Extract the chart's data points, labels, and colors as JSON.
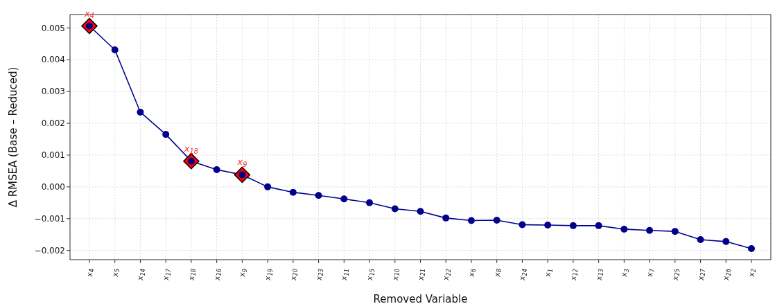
{
  "chart_data": {
    "type": "line",
    "xlabel": "Removed Variable",
    "ylabel": "Δ RMSEA (Base – Reduced)",
    "categories": [
      "x$_{4}$",
      "x$_{5}$",
      "x$_{14}$",
      "x$_{17}$",
      "x$_{18}$",
      "x$_{16}$",
      "x$_{9}$",
      "x$_{19}$",
      "x$_{20}$",
      "x$_{23}$",
      "x$_{11}$",
      "x$_{15}$",
      "x$_{10}$",
      "x$_{21}$",
      "x$_{22}$",
      "x$_{6}$",
      "x$_{8}$",
      "x$_{24}$",
      "x$_{1}$",
      "x$_{12}$",
      "x$_{13}$",
      "x$_{3}$",
      "x$_{7}$",
      "x$_{25}$",
      "x$_{27}$",
      "x$_{26}$",
      "x$_{2}$"
    ],
    "series": [
      {
        "type": "scatter",
        "color": "#ff0000",
        "marker": "diamond",
        "x": [
          "x$_{4}$",
          "x$_{18}$",
          "x$_{9}$"
        ],
        "values": [
          0.00506,
          0.00081,
          0.00038
        ]
      },
      {
        "type": "line",
        "color": "#00008b",
        "marker": "circle",
        "values": [
          0.00506,
          0.00431,
          0.00235,
          0.00165,
          0.00081,
          0.00054,
          0.00038,
          0.0,
          -0.00017,
          -0.00027,
          -0.00038,
          -0.0005,
          -0.00069,
          -0.00077,
          -0.00098,
          -0.00106,
          -0.00105,
          -0.00119,
          -0.0012,
          -0.00122,
          -0.00122,
          -0.00133,
          -0.00137,
          -0.0014,
          -0.00166,
          -0.00172,
          -0.00194
        ]
      }
    ],
    "annotations": [
      {
        "text": "x$_{4}$",
        "x": "x$_{4}$",
        "y": 0.00506
      },
      {
        "text": "x$_{18}$",
        "x": "x$_{18}$",
        "y": 0.00081
      },
      {
        "text": "x$_{9}$",
        "x": "x$_{9}$",
        "y": 0.00038
      }
    ],
    "ylim": [
      -0.00229,
      0.00542
    ],
    "yticks": [
      {
        "value": -0.002,
        "label": "−0.002"
      },
      {
        "value": -0.001,
        "label": "−0.001"
      },
      {
        "value": 0,
        "label": "0.000"
      },
      0.001,
      0.002,
      0.003,
      0.004,
      0.005
    ],
    "grid": true,
    "line_style": "solid",
    "legend": false
  }
}
